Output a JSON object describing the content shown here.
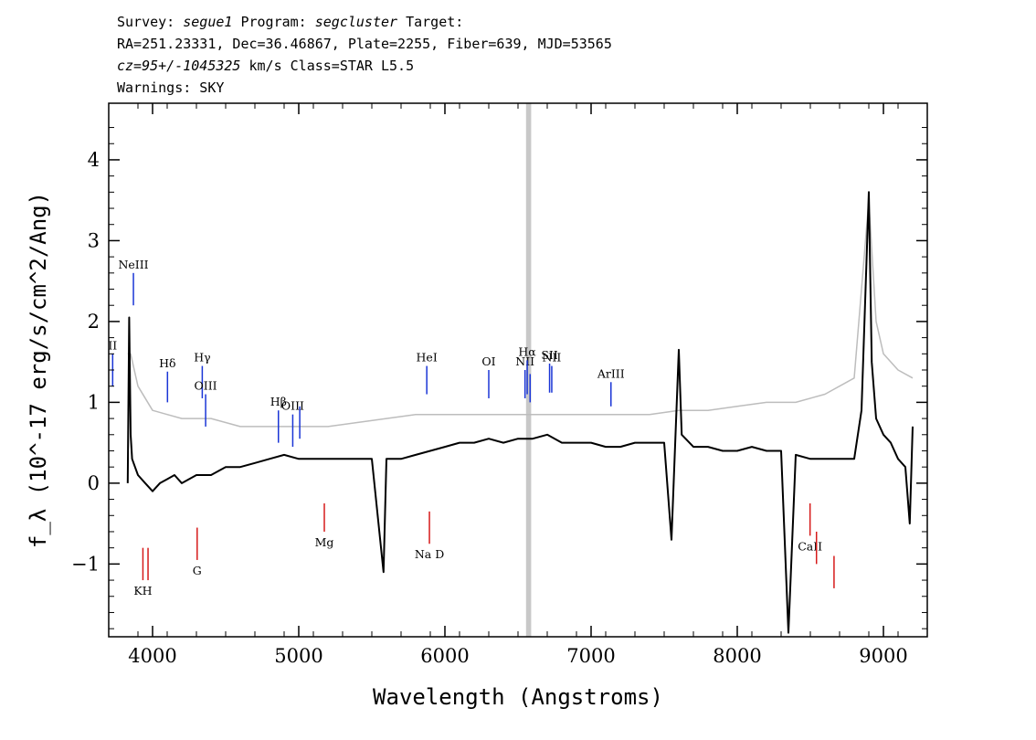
{
  "header": {
    "line1": {
      "survey_label": "Survey: ",
      "survey": "segue1",
      "program_label": " Program: ",
      "program": "segcluster",
      "target_label": " Target:"
    },
    "line2": "RA=251.23331, Dec=36.46867, Plate=2255, Fiber=639, MJD=53565",
    "line3": {
      "cz": "cz=95+/-1045325",
      "rest": " km/s Class=STAR L5.5"
    },
    "line4": "Warnings: SKY"
  },
  "chart_data": {
    "type": "line",
    "title": "",
    "xlabel": "Wavelength (Angstroms)",
    "ylabel": "f_λ (10^-17 erg/s/cm^2/Ang)",
    "xlim": [
      3700,
      9300
    ],
    "ylim": [
      -1.9,
      4.7
    ],
    "xticks": [
      4000,
      5000,
      6000,
      7000,
      8000,
      9000
    ],
    "yticks": [
      -1,
      0,
      1,
      2,
      3,
      4
    ],
    "series": [
      {
        "style": "black",
        "x": [
          3830,
          3840,
          3850,
          3860,
          3880,
          3900,
          3950,
          4000,
          4050,
          4100,
          4150,
          4200,
          4300,
          4400,
          4500,
          4600,
          4700,
          4800,
          4900,
          5000,
          5100,
          5200,
          5300,
          5400,
          5500,
          5580,
          5600,
          5700,
          5800,
          5900,
          6000,
          6100,
          6200,
          6300,
          6400,
          6500,
          6600,
          6700,
          6800,
          6900,
          7000,
          7100,
          7200,
          7300,
          7400,
          7500,
          7550,
          7600,
          7620,
          7700,
          7800,
          7900,
          8000,
          8100,
          8200,
          8300,
          8350,
          8400,
          8500,
          8600,
          8700,
          8800,
          8850,
          8900,
          8920,
          8950,
          9000,
          9050,
          9100,
          9150,
          9180,
          9200
        ],
        "y": [
          0.0,
          2.05,
          0.6,
          0.3,
          0.2,
          0.1,
          0.0,
          -0.1,
          0.0,
          0.05,
          0.1,
          0.0,
          0.1,
          0.1,
          0.2,
          0.2,
          0.25,
          0.3,
          0.35,
          0.3,
          0.3,
          0.3,
          0.3,
          0.3,
          0.3,
          -1.1,
          0.3,
          0.3,
          0.35,
          0.4,
          0.45,
          0.5,
          0.5,
          0.55,
          0.5,
          0.55,
          0.55,
          0.6,
          0.5,
          0.5,
          0.5,
          0.45,
          0.45,
          0.5,
          0.5,
          0.5,
          -0.7,
          1.65,
          0.6,
          0.45,
          0.45,
          0.4,
          0.4,
          0.45,
          0.4,
          0.4,
          -1.85,
          0.35,
          0.3,
          0.3,
          0.3,
          0.3,
          0.9,
          3.6,
          1.5,
          0.8,
          0.6,
          0.5,
          0.3,
          0.2,
          -0.5,
          0.7
        ]
      },
      {
        "style": "grey",
        "x": [
          3830,
          3850,
          3900,
          4000,
          4100,
          4200,
          4300,
          4400,
          4500,
          4600,
          4700,
          4800,
          4900,
          5000,
          5200,
          5400,
          5600,
          5800,
          6000,
          6200,
          6400,
          6600,
          6800,
          7000,
          7200,
          7400,
          7600,
          7800,
          8000,
          8200,
          8400,
          8600,
          8800,
          8900,
          8950,
          9000,
          9100,
          9200
        ],
        "y": [
          1.6,
          1.6,
          1.2,
          0.9,
          0.85,
          0.8,
          0.8,
          0.8,
          0.75,
          0.7,
          0.7,
          0.7,
          0.7,
          0.7,
          0.7,
          0.75,
          0.8,
          0.85,
          0.85,
          0.85,
          0.85,
          0.85,
          0.85,
          0.85,
          0.85,
          0.85,
          0.9,
          0.9,
          0.95,
          1.0,
          1.0,
          1.1,
          1.3,
          3.5,
          2.0,
          1.6,
          1.4,
          1.3
        ]
      }
    ],
    "sky_band": [
      6555,
      6590
    ],
    "emission_lines": [
      {
        "name": "NeIII",
        "x": 3869,
        "y1": 2.2,
        "y2": 2.6
      },
      {
        "name": "II",
        "x": 3727,
        "y1": 1.2,
        "y2": 1.6
      },
      {
        "name": "Hδ",
        "x": 4102,
        "y1": 1.0,
        "y2": 1.38
      },
      {
        "name": "Hγ",
        "x": 4340,
        "y1": 1.05,
        "y2": 1.45
      },
      {
        "name": "OIII",
        "x": 4363,
        "y1": 0.7,
        "y2": 1.1
      },
      {
        "name": "Hβ",
        "x": 4861,
        "y1": 0.5,
        "y2": 0.9
      },
      {
        "name": "OIII",
        "x": 4959,
        "y1": 0.45,
        "y2": 0.85
      },
      {
        "name": "",
        "x": 5007,
        "y1": 0.55,
        "y2": 0.95
      },
      {
        "name": "HeI",
        "x": 5876,
        "y1": 1.1,
        "y2": 1.45
      },
      {
        "name": "OI",
        "x": 6300,
        "y1": 1.05,
        "y2": 1.4
      },
      {
        "name": "NII",
        "x": 6548,
        "y1": 1.05,
        "y2": 1.4
      },
      {
        "name": "Hα",
        "x": 6563,
        "y1": 1.1,
        "y2": 1.52
      },
      {
        "name": "",
        "x": 6583,
        "y1": 1.0,
        "y2": 1.35
      },
      {
        "name": "SII",
        "x": 6716,
        "y1": 1.12,
        "y2": 1.48
      },
      {
        "name": "NII",
        "x": 6731,
        "y1": 1.12,
        "y2": 1.45
      },
      {
        "name": "ArIII",
        "x": 7136,
        "y1": 0.95,
        "y2": 1.25
      }
    ],
    "absorption_lines": [
      {
        "name": "KH",
        "x": 3934,
        "y1": -0.8,
        "y2": -1.2
      },
      {
        "name": "",
        "x": 3969,
        "y1": -0.8,
        "y2": -1.2
      },
      {
        "name": "G",
        "x": 4305,
        "y1": -0.55,
        "y2": -0.95
      },
      {
        "name": "Mg",
        "x": 5175,
        "y1": -0.25,
        "y2": -0.6
      },
      {
        "name": "Na D",
        "x": 5894,
        "y1": -0.35,
        "y2": -0.75
      },
      {
        "name": "CaII",
        "x": 8498,
        "y1": -0.25,
        "y2": -0.65
      },
      {
        "name": "",
        "x": 8542,
        "y1": -0.6,
        "y2": -1.0
      },
      {
        "name": "",
        "x": 8662,
        "y1": -0.9,
        "y2": -1.3
      }
    ]
  }
}
